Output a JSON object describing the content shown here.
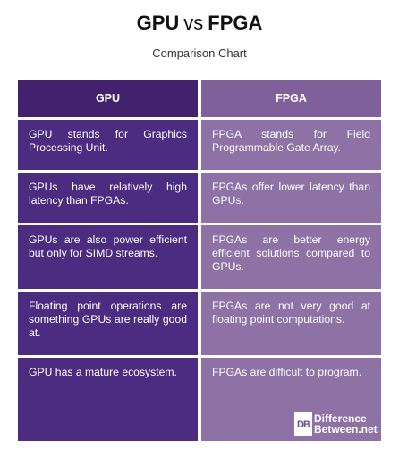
{
  "title": {
    "left": "GPU",
    "vs": "vs",
    "right": "FPGA"
  },
  "subtitle": "Comparison Chart",
  "table": {
    "headers": [
      "GPU",
      "FPGA"
    ],
    "rows": [
      [
        "GPU stands for Graphics Processing Unit.",
        "FPGA stands for Field Programmable Gate Array."
      ],
      [
        "GPUs have relatively high latency than FPGAs.",
        "FPGAs offer lower latency than GPUs."
      ],
      [
        "GPUs are also power efficient but only for SIMD streams.",
        "FPGAs are better energy efficient solutions compared to GPUs."
      ],
      [
        "Floating point operations are something GPUs are really good at.",
        "FPGAs are not very good at floating point computations."
      ],
      [
        "GPU has a mature ecosystem.",
        "FPGAs are difficult to program."
      ]
    ]
  },
  "logo": {
    "mark": "DB",
    "line1": "Difference",
    "line2": "Between.net"
  }
}
